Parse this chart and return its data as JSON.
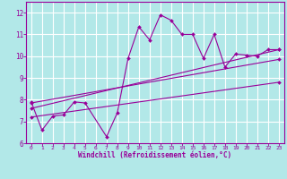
{
  "background_color": "#b2e8e8",
  "grid_color": "#ffffff",
  "line_color": "#990099",
  "marker_color": "#990099",
  "xlabel": "Windchill (Refroidissement éolien,°C)",
  "xlim": [
    -0.5,
    23.5
  ],
  "ylim": [
    6,
    12.5
  ],
  "xticks": [
    0,
    1,
    2,
    3,
    4,
    5,
    6,
    7,
    8,
    9,
    10,
    11,
    12,
    13,
    14,
    15,
    16,
    17,
    18,
    19,
    20,
    21,
    22,
    23
  ],
  "yticks": [
    6,
    7,
    8,
    9,
    10,
    11,
    12
  ],
  "series1_x": [
    0,
    1,
    2,
    3,
    4,
    5,
    7,
    8,
    9,
    10,
    11,
    12,
    13,
    14,
    15,
    16,
    17,
    18,
    19,
    20,
    21,
    22,
    23
  ],
  "series1_y": [
    7.9,
    6.6,
    7.25,
    7.3,
    7.9,
    7.85,
    6.3,
    7.4,
    9.9,
    11.35,
    10.75,
    11.9,
    11.65,
    11.0,
    11.0,
    9.9,
    11.0,
    9.5,
    10.1,
    10.05,
    10.0,
    10.3,
    10.3
  ],
  "series2_x": [
    0,
    23
  ],
  "series2_y": [
    7.6,
    10.3
  ],
  "series3_x": [
    0,
    23
  ],
  "series3_y": [
    7.85,
    9.85
  ],
  "series4_x": [
    0,
    23
  ],
  "series4_y": [
    7.2,
    8.8
  ]
}
